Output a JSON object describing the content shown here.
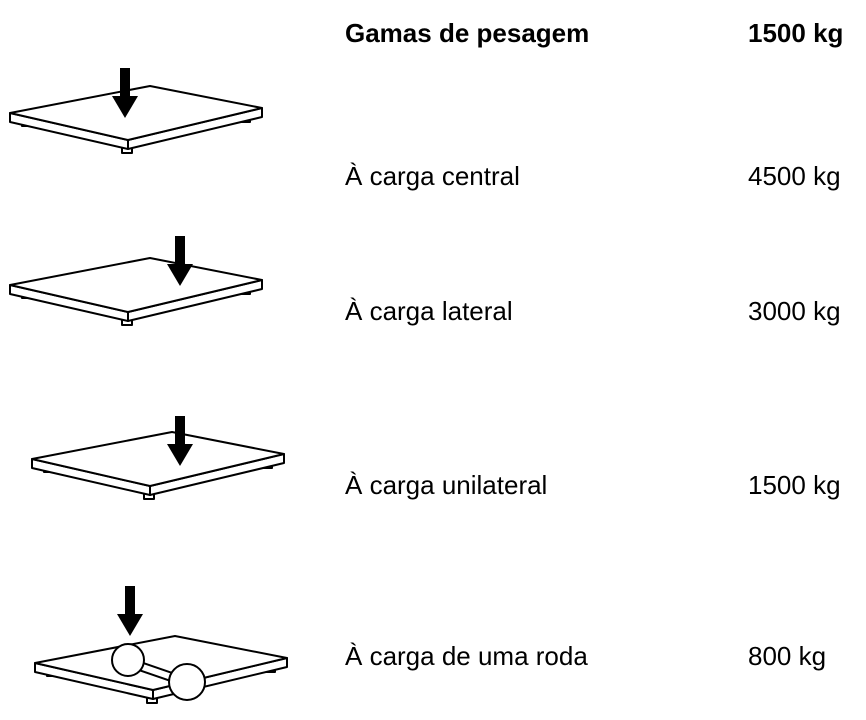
{
  "header": {
    "label": "Gamas de pesagem",
    "value": "1500 kg"
  },
  "rows": [
    {
      "label": "À carga central",
      "value": "4500 kg"
    },
    {
      "label": "À carga lateral",
      "value": "3000 kg"
    },
    {
      "label": "À carga unilateral",
      "value": "1500 kg"
    },
    {
      "label": "À carga de uma roda",
      "value": "800 kg"
    }
  ]
}
